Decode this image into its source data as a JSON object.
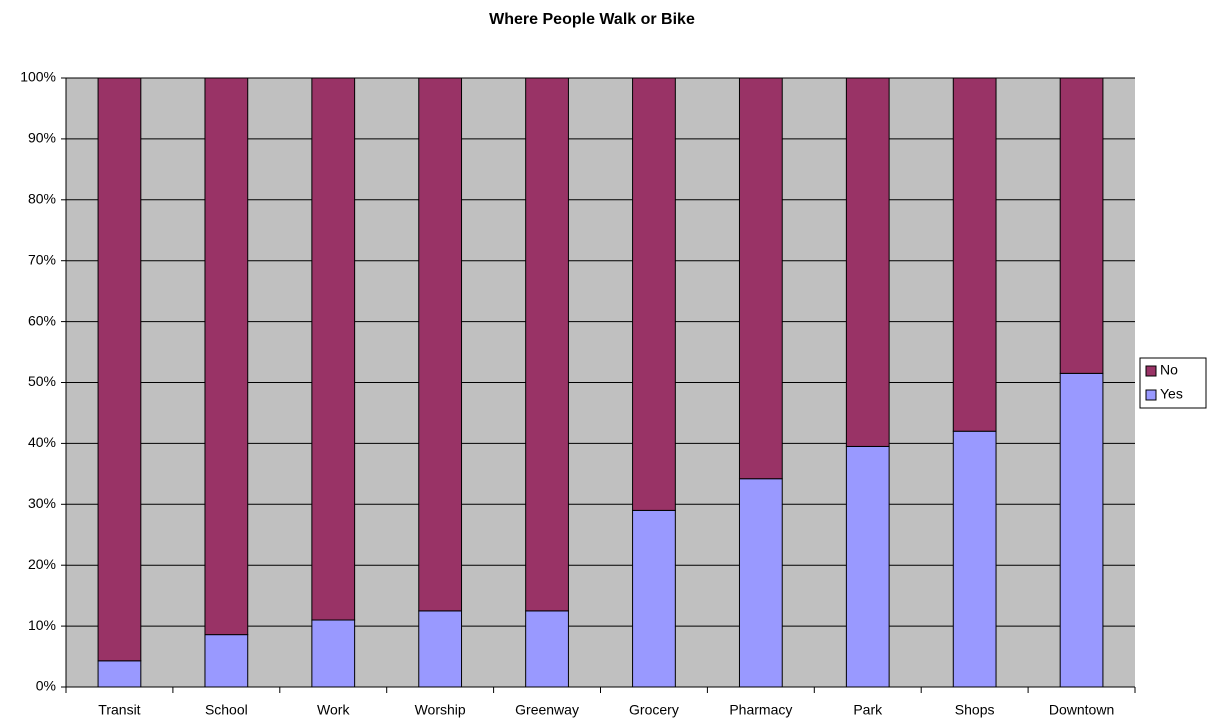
{
  "chart_data": {
    "type": "stacked_bar",
    "title": "Where People Walk or Bike",
    "categories": [
      "Transit",
      "School",
      "Work",
      "Worship",
      "Greenway",
      "Grocery",
      "Pharmacy",
      "Park",
      "Shops",
      "Downtown"
    ],
    "series": [
      {
        "name": "Yes",
        "color": "#9999ff",
        "values": [
          4.3,
          8.6,
          11,
          12.5,
          12.5,
          29,
          34.2,
          39.5,
          42,
          51.5
        ]
      },
      {
        "name": "No",
        "color": "#993366",
        "values": [
          95.7,
          91.4,
          89,
          87.5,
          87.5,
          71,
          65.8,
          60.5,
          58,
          48.5
        ]
      }
    ],
    "ylim": [
      0,
      100
    ],
    "yticks": [
      {
        "value": 0,
        "label": "0%"
      },
      {
        "value": 10,
        "label": "10%"
      },
      {
        "value": 20,
        "label": "20%"
      },
      {
        "value": 30,
        "label": "30%"
      },
      {
        "value": 40,
        "label": "40%"
      },
      {
        "value": 50,
        "label": "50%"
      },
      {
        "value": 60,
        "label": "60%"
      },
      {
        "value": 70,
        "label": "70%"
      },
      {
        "value": 80,
        "label": "80%"
      },
      {
        "value": 90,
        "label": "90%"
      },
      {
        "value": 100,
        "label": "100%"
      }
    ],
    "grid": true,
    "legend": "right"
  }
}
